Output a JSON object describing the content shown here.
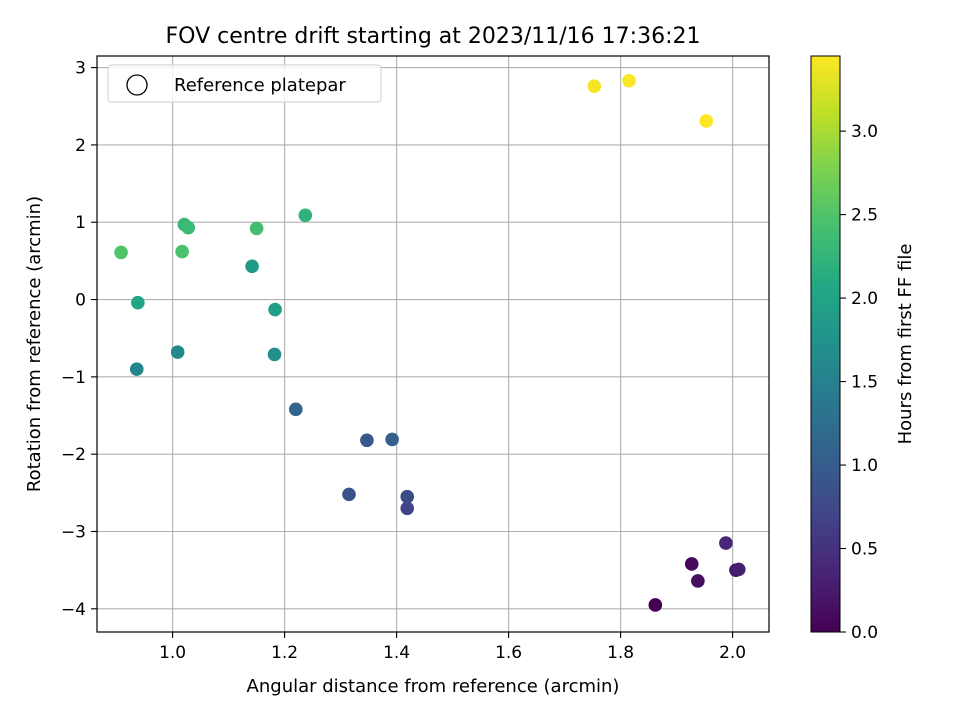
{
  "chart_data": {
    "type": "scatter",
    "title": "FOV centre drift starting at 2023/11/16 17:36:21",
    "xlabel": "Angular distance from reference (arcmin)",
    "ylabel": "Rotation from reference (arcmin)",
    "xlim": [
      0.865,
      2.065
    ],
    "ylim": [
      -4.3,
      3.15
    ],
    "xticks": [
      1.0,
      1.2,
      1.4,
      1.6,
      1.8,
      2.0
    ],
    "xtick_labels": [
      "1.0",
      "1.2",
      "1.4",
      "1.6",
      "1.8",
      "2.0"
    ],
    "yticks": [
      3,
      2,
      1,
      0,
      -1,
      -2,
      -3,
      -4
    ],
    "ytick_labels": [
      "3",
      "2",
      "1",
      "0",
      "−1",
      "−2",
      "−3",
      "−4"
    ],
    "grid": true,
    "legend": {
      "placement": "top-left",
      "entries": [
        "Reference platepar"
      ]
    },
    "colorbar": {
      "label": "Hours from first FF file",
      "colormap": "viridis",
      "range": [
        0.0,
        3.45
      ],
      "ticks": [
        0.0,
        0.5,
        1.0,
        1.5,
        2.0,
        2.5,
        3.0
      ],
      "tick_labels": [
        "0.0",
        "0.5",
        "1.0",
        "1.5",
        "2.0",
        "2.5",
        "3.0"
      ]
    },
    "points": [
      {
        "x": 1.862,
        "y": -3.95,
        "hours": 0.0
      },
      {
        "x": 1.927,
        "y": -3.42,
        "hours": 0.08
      },
      {
        "x": 1.938,
        "y": -3.64,
        "hours": 0.15
      },
      {
        "x": 2.006,
        "y": -3.5,
        "hours": 0.22
      },
      {
        "x": 2.011,
        "y": -3.49,
        "hours": 0.3
      },
      {
        "x": 1.988,
        "y": -3.15,
        "hours": 0.38
      },
      {
        "x": 1.419,
        "y": -2.7,
        "hours": 0.7
      },
      {
        "x": 1.419,
        "y": -2.55,
        "hours": 0.78
      },
      {
        "x": 1.315,
        "y": -2.52,
        "hours": 0.86
      },
      {
        "x": 1.347,
        "y": -1.82,
        "hours": 0.95
      },
      {
        "x": 1.392,
        "y": -1.81,
        "hours": 1.03
      },
      {
        "x": 1.22,
        "y": -1.42,
        "hours": 1.12
      },
      {
        "x": 0.936,
        "y": -0.9,
        "hours": 1.55
      },
      {
        "x": 1.009,
        "y": -0.68,
        "hours": 1.62
      },
      {
        "x": 1.182,
        "y": -0.71,
        "hours": 1.7
      },
      {
        "x": 1.142,
        "y": 0.43,
        "hours": 1.85
      },
      {
        "x": 1.183,
        "y": -0.13,
        "hours": 1.95
      },
      {
        "x": 0.938,
        "y": -0.04,
        "hours": 2.02
      },
      {
        "x": 1.237,
        "y": 1.09,
        "hours": 2.2
      },
      {
        "x": 1.021,
        "y": 0.97,
        "hours": 2.3
      },
      {
        "x": 1.028,
        "y": 0.93,
        "hours": 2.33
      },
      {
        "x": 1.15,
        "y": 0.92,
        "hours": 2.4
      },
      {
        "x": 1.017,
        "y": 0.62,
        "hours": 2.45
      },
      {
        "x": 0.908,
        "y": 0.61,
        "hours": 2.5
      },
      {
        "x": 1.753,
        "y": 2.76,
        "hours": 3.4
      },
      {
        "x": 1.815,
        "y": 2.83,
        "hours": 3.43
      },
      {
        "x": 1.953,
        "y": 2.31,
        "hours": 3.45
      }
    ]
  }
}
